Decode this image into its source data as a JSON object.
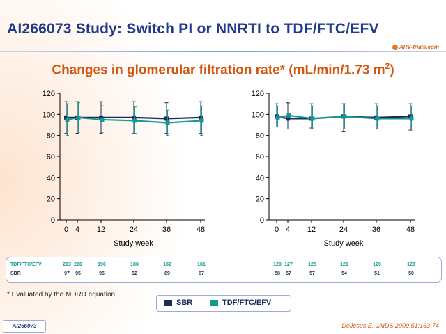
{
  "title": "AI266073 Study: Switch PI or NNRTI to TDF/FTC/EFV",
  "logo_text": "ARV-trials.com",
  "subtitle_main": "Changes in glomerular filtration rate* (mL/min/1.73 m",
  "subtitle_sup": "2",
  "subtitle_end": ")",
  "footnote": "* Evaluated by the MDRD equation",
  "tag": "AI266073",
  "citation": "DeJesus E, JAIDS 2009;51:163-74",
  "legend": {
    "sbr": "SBR",
    "tdf": "TDF/FTC/EFV"
  },
  "colors": {
    "sbr": "#1c2a5a",
    "tdf": "#13998f",
    "title": "#1f3a8a",
    "subtitle": "#d4550e"
  },
  "counts": {
    "row_labels": [
      "TDF/FTC/EFV",
      "SBR"
    ],
    "left": {
      "tdf": [
        "203",
        "200",
        "196",
        "188",
        "182",
        "181"
      ],
      "sbr": [
        "97",
        "95",
        "95",
        "92",
        "89",
        "87"
      ]
    },
    "right": {
      "tdf": [
        "129",
        "127",
        "125",
        "121",
        "120",
        "120"
      ],
      "sbr": [
        "58",
        "57",
        "57",
        "54",
        "51",
        "50"
      ]
    }
  },
  "chart_data": [
    {
      "type": "line",
      "title": "",
      "xlabel": "Study week",
      "ylabel": "",
      "x": [
        0,
        4,
        12,
        24,
        36,
        48
      ],
      "xticks": [
        "0",
        "4",
        "12",
        "24",
        "36",
        "48"
      ],
      "ylim": [
        0,
        120
      ],
      "yticks": [
        "0",
        "20",
        "40",
        "60",
        "80",
        "100",
        "120"
      ],
      "series": [
        {
          "name": "SBR",
          "values": [
            97,
            97,
            97,
            97,
            96,
            97
          ],
          "err_low": [
            82,
            82,
            82,
            82,
            82,
            82
          ],
          "err_high": [
            112,
            112,
            112,
            112,
            111,
            112
          ]
        },
        {
          "name": "TDF/FTC/EFV",
          "values": [
            95,
            97,
            95,
            94,
            92,
            94
          ],
          "err_low": [
            80,
            83,
            83,
            82,
            80,
            80
          ],
          "err_high": [
            110,
            111,
            108,
            107,
            104,
            108
          ]
        }
      ]
    },
    {
      "type": "line",
      "title": "",
      "xlabel": "Study week",
      "ylabel": "",
      "x": [
        0,
        4,
        12,
        24,
        36,
        48
      ],
      "xticks": [
        "0",
        "4",
        "12",
        "24",
        "36",
        "48"
      ],
      "ylim": [
        0,
        120
      ],
      "yticks": [
        "0",
        "20",
        "40",
        "60",
        "80",
        "100",
        "120"
      ],
      "series": [
        {
          "name": "SBR",
          "values": [
            98,
            96,
            96,
            98,
            97,
            98
          ],
          "err_low": [
            88,
            86,
            87,
            84,
            86,
            85
          ],
          "err_high": [
            110,
            111,
            110,
            110,
            110,
            110
          ]
        },
        {
          "name": "TDF/FTC/EFV",
          "values": [
            97,
            99,
            96,
            98,
            96,
            96
          ],
          "err_low": [
            88,
            88,
            86,
            86,
            86,
            86
          ],
          "err_high": [
            108,
            110,
            108,
            110,
            108,
            108
          ]
        }
      ]
    }
  ]
}
